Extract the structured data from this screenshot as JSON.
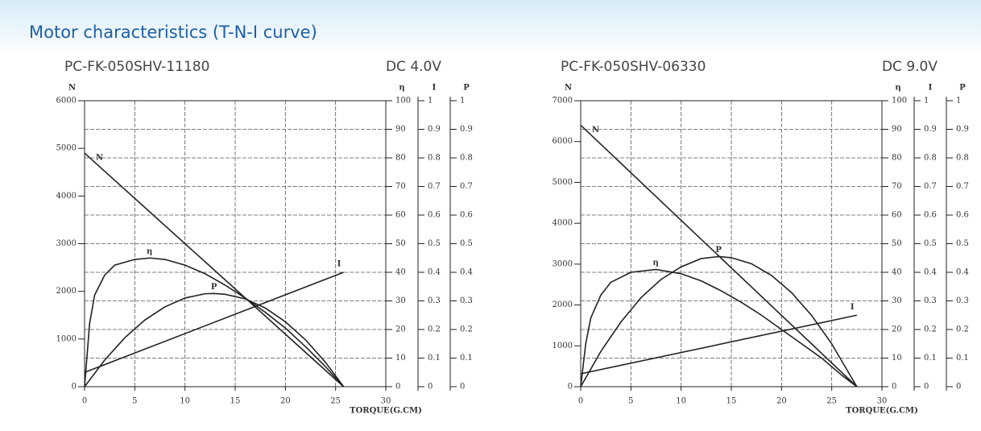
{
  "page_title": "Motor characteristics (T-N-I curve)",
  "chart_data": [
    {
      "type": "line",
      "title": "PC-FK-050SHV-11180",
      "subtitle": "DC  4.0V",
      "x_label": "TORQUE(G.CM)",
      "xlim": [
        0,
        30
      ],
      "xticks": [
        0,
        5,
        10,
        15,
        20,
        25,
        30
      ],
      "y_label": "N",
      "ylim": [
        0,
        6000
      ],
      "yticks": [
        0,
        1000,
        2000,
        3000,
        4000,
        5000,
        6000
      ],
      "y2_label": "η",
      "y2lim": [
        0,
        100
      ],
      "y2ticks": [
        0,
        10,
        20,
        30,
        40,
        50,
        60,
        70,
        80,
        90,
        100
      ],
      "y3_label": "I",
      "y3lim": [
        0,
        1
      ],
      "y3ticks": [
        0,
        0.1,
        0.2,
        0.3,
        0.4,
        0.5,
        0.6,
        0.7,
        0.8,
        0.9,
        1
      ],
      "y4_label": "P",
      "y4lim": [
        0,
        1
      ],
      "y4ticks": [
        0,
        0.1,
        0.2,
        0.3,
        0.4,
        0.5,
        0.6,
        0.7,
        0.8,
        0.9,
        1
      ],
      "grid": true,
      "series": [
        {
          "name": "N",
          "color": "#222222",
          "axis": "y",
          "x": [
            0,
            25.8
          ],
          "values": [
            4900,
            0
          ]
        },
        {
          "name": "η",
          "color": "#222222",
          "axis": "y2",
          "x": [
            0,
            0.5,
            1,
            2,
            3,
            5,
            6.5,
            8,
            10,
            12,
            14,
            16,
            18,
            20,
            22,
            24,
            25.8
          ],
          "values": [
            0,
            22,
            32,
            39,
            42.5,
            44.5,
            45,
            44.5,
            42.5,
            39.5,
            35.5,
            31,
            26,
            20.5,
            14,
            7,
            0
          ]
        },
        {
          "name": "P",
          "color": "#222222",
          "axis": "y4",
          "x": [
            0,
            2,
            4,
            6,
            8,
            10,
            12,
            12.9,
            14,
            16,
            18,
            20,
            22,
            24,
            25.8
          ],
          "values": [
            0,
            0.093,
            0.171,
            0.233,
            0.279,
            0.31,
            0.325,
            0.326,
            0.323,
            0.307,
            0.275,
            0.227,
            0.164,
            0.085,
            0
          ]
        },
        {
          "name": "I",
          "color": "#222222",
          "axis": "y3",
          "x": [
            0,
            25.8
          ],
          "values": [
            0.05,
            0.4
          ]
        }
      ]
    },
    {
      "type": "line",
      "title": "PC-FK-050SHV-06330",
      "subtitle": "DC 9.0V",
      "x_label": "TORQUE(G.CM)",
      "xlim": [
        0,
        30
      ],
      "xticks": [
        0,
        5,
        10,
        15,
        20,
        25,
        30
      ],
      "y_label": "N",
      "ylim": [
        0,
        7000
      ],
      "yticks": [
        0,
        1000,
        2000,
        3000,
        4000,
        5000,
        6000,
        7000
      ],
      "y2_label": "η",
      "y2lim": [
        0,
        100
      ],
      "y2ticks": [
        0,
        10,
        20,
        30,
        40,
        50,
        60,
        70,
        80,
        90,
        100
      ],
      "y3_label": "I",
      "y3lim": [
        0,
        1
      ],
      "y3ticks": [
        0,
        0.1,
        0.2,
        0.3,
        0.4,
        0.5,
        0.6,
        0.7,
        0.8,
        0.9,
        1
      ],
      "y4_label": "P",
      "y4lim": [
        0,
        1
      ],
      "y4ticks": [
        0,
        0.1,
        0.2,
        0.3,
        0.4,
        0.5,
        0.6,
        0.7,
        0.8,
        0.9,
        1
      ],
      "grid": true,
      "series": [
        {
          "name": "N",
          "color": "#222222",
          "axis": "y",
          "x": [
            0,
            27.5
          ],
          "values": [
            6400,
            0
          ]
        },
        {
          "name": "η",
          "color": "#222222",
          "axis": "y2",
          "x": [
            0,
            0.5,
            1,
            2,
            3,
            5,
            7.5,
            10,
            12,
            14,
            16,
            18,
            20,
            22,
            24,
            26,
            27.5
          ],
          "values": [
            0,
            15,
            24,
            32,
            36.5,
            40,
            41,
            39.5,
            37,
            33.5,
            29.5,
            25,
            20,
            15,
            10,
            4,
            0
          ]
        },
        {
          "name": "P",
          "color": "#222222",
          "axis": "y4",
          "x": [
            0,
            2,
            4,
            6,
            8,
            10,
            12,
            13.75,
            15,
            17,
            19,
            21,
            23,
            25,
            27.5
          ],
          "values": [
            0,
            0.123,
            0.226,
            0.311,
            0.375,
            0.419,
            0.448,
            0.455,
            0.451,
            0.43,
            0.389,
            0.329,
            0.249,
            0.15,
            0
          ]
        },
        {
          "name": "I",
          "color": "#222222",
          "axis": "y3",
          "x": [
            0,
            27.5
          ],
          "values": [
            0.045,
            0.25
          ]
        }
      ]
    }
  ]
}
